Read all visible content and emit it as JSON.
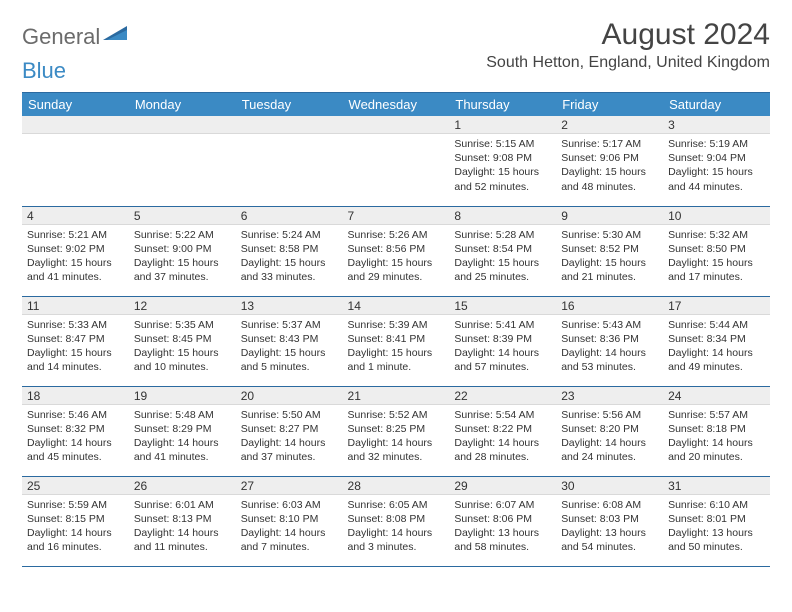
{
  "brand": {
    "word1": "General",
    "word2": "Blue"
  },
  "title": "August 2024",
  "location": "South Hetton, England, United Kingdom",
  "colors": {
    "header_bg": "#3b8ac4",
    "header_text": "#ffffff",
    "row_border": "#2b6aa0",
    "daynum_bg": "#eeeeee",
    "text": "#333333"
  },
  "weekdays": [
    "Sunday",
    "Monday",
    "Tuesday",
    "Wednesday",
    "Thursday",
    "Friday",
    "Saturday"
  ],
  "leading_blanks": 4,
  "days": [
    {
      "n": 1,
      "sr": "5:15 AM",
      "ss": "9:08 PM",
      "dl": "15 hours and 52 minutes."
    },
    {
      "n": 2,
      "sr": "5:17 AM",
      "ss": "9:06 PM",
      "dl": "15 hours and 48 minutes."
    },
    {
      "n": 3,
      "sr": "5:19 AM",
      "ss": "9:04 PM",
      "dl": "15 hours and 44 minutes."
    },
    {
      "n": 4,
      "sr": "5:21 AM",
      "ss": "9:02 PM",
      "dl": "15 hours and 41 minutes."
    },
    {
      "n": 5,
      "sr": "5:22 AM",
      "ss": "9:00 PM",
      "dl": "15 hours and 37 minutes."
    },
    {
      "n": 6,
      "sr": "5:24 AM",
      "ss": "8:58 PM",
      "dl": "15 hours and 33 minutes."
    },
    {
      "n": 7,
      "sr": "5:26 AM",
      "ss": "8:56 PM",
      "dl": "15 hours and 29 minutes."
    },
    {
      "n": 8,
      "sr": "5:28 AM",
      "ss": "8:54 PM",
      "dl": "15 hours and 25 minutes."
    },
    {
      "n": 9,
      "sr": "5:30 AM",
      "ss": "8:52 PM",
      "dl": "15 hours and 21 minutes."
    },
    {
      "n": 10,
      "sr": "5:32 AM",
      "ss": "8:50 PM",
      "dl": "15 hours and 17 minutes."
    },
    {
      "n": 11,
      "sr": "5:33 AM",
      "ss": "8:47 PM",
      "dl": "15 hours and 14 minutes."
    },
    {
      "n": 12,
      "sr": "5:35 AM",
      "ss": "8:45 PM",
      "dl": "15 hours and 10 minutes."
    },
    {
      "n": 13,
      "sr": "5:37 AM",
      "ss": "8:43 PM",
      "dl": "15 hours and 5 minutes."
    },
    {
      "n": 14,
      "sr": "5:39 AM",
      "ss": "8:41 PM",
      "dl": "15 hours and 1 minute."
    },
    {
      "n": 15,
      "sr": "5:41 AM",
      "ss": "8:39 PM",
      "dl": "14 hours and 57 minutes."
    },
    {
      "n": 16,
      "sr": "5:43 AM",
      "ss": "8:36 PM",
      "dl": "14 hours and 53 minutes."
    },
    {
      "n": 17,
      "sr": "5:44 AM",
      "ss": "8:34 PM",
      "dl": "14 hours and 49 minutes."
    },
    {
      "n": 18,
      "sr": "5:46 AM",
      "ss": "8:32 PM",
      "dl": "14 hours and 45 minutes."
    },
    {
      "n": 19,
      "sr": "5:48 AM",
      "ss": "8:29 PM",
      "dl": "14 hours and 41 minutes."
    },
    {
      "n": 20,
      "sr": "5:50 AM",
      "ss": "8:27 PM",
      "dl": "14 hours and 37 minutes."
    },
    {
      "n": 21,
      "sr": "5:52 AM",
      "ss": "8:25 PM",
      "dl": "14 hours and 32 minutes."
    },
    {
      "n": 22,
      "sr": "5:54 AM",
      "ss": "8:22 PM",
      "dl": "14 hours and 28 minutes."
    },
    {
      "n": 23,
      "sr": "5:56 AM",
      "ss": "8:20 PM",
      "dl": "14 hours and 24 minutes."
    },
    {
      "n": 24,
      "sr": "5:57 AM",
      "ss": "8:18 PM",
      "dl": "14 hours and 20 minutes."
    },
    {
      "n": 25,
      "sr": "5:59 AM",
      "ss": "8:15 PM",
      "dl": "14 hours and 16 minutes."
    },
    {
      "n": 26,
      "sr": "6:01 AM",
      "ss": "8:13 PM",
      "dl": "14 hours and 11 minutes."
    },
    {
      "n": 27,
      "sr": "6:03 AM",
      "ss": "8:10 PM",
      "dl": "14 hours and 7 minutes."
    },
    {
      "n": 28,
      "sr": "6:05 AM",
      "ss": "8:08 PM",
      "dl": "14 hours and 3 minutes."
    },
    {
      "n": 29,
      "sr": "6:07 AM",
      "ss": "8:06 PM",
      "dl": "13 hours and 58 minutes."
    },
    {
      "n": 30,
      "sr": "6:08 AM",
      "ss": "8:03 PM",
      "dl": "13 hours and 54 minutes."
    },
    {
      "n": 31,
      "sr": "6:10 AM",
      "ss": "8:01 PM",
      "dl": "13 hours and 50 minutes."
    }
  ],
  "labels": {
    "sunrise": "Sunrise:",
    "sunset": "Sunset:",
    "daylight": "Daylight:"
  }
}
